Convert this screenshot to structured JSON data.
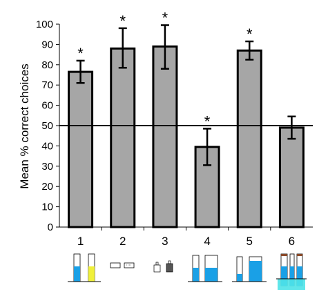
{
  "chart_data": {
    "type": "bar",
    "title": "",
    "xlabel": "",
    "ylabel": "Mean % correct choices",
    "ylim": [
      0,
      100
    ],
    "yticks": [
      0,
      10,
      20,
      30,
      40,
      50,
      60,
      70,
      80,
      90,
      100
    ],
    "categories": [
      "1",
      "2",
      "3",
      "4",
      "5",
      "6"
    ],
    "values": [
      76.5,
      88,
      89,
      39.5,
      87,
      49
    ],
    "error_low": [
      71,
      78.5,
      78,
      30.5,
      82.5,
      43.5
    ],
    "error_high": [
      82,
      98,
      99.5,
      48.5,
      91.5,
      54.5
    ],
    "significant": [
      true,
      true,
      true,
      true,
      true,
      false
    ],
    "significance_marker": "*",
    "reference_line": 50,
    "bar_color": "#a6a6a6",
    "grid": false,
    "legend": "none"
  },
  "icons": [
    "two-tubes-blue-yellow-icon",
    "two-boxes-icon",
    "two-bottles-icon",
    "two-tubes-blue-levels-icon",
    "two-tubes-blue-short-tall-icon",
    "three-tubes-cyan-icon"
  ]
}
